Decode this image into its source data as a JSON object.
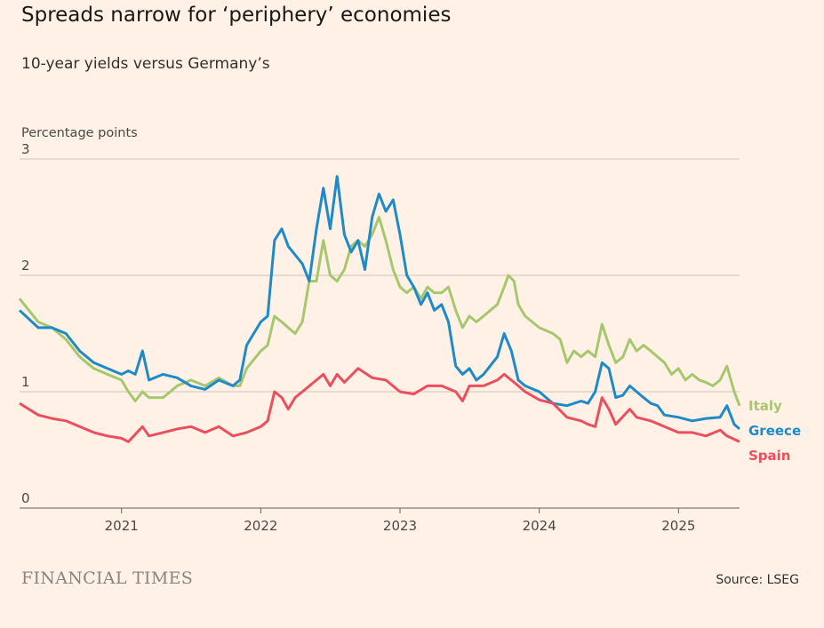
{
  "title": "Spreads narrow for ‘periphery’ economies",
  "subtitle": "10-year yields versus Germany’s",
  "source": "Source: LSEG",
  "logo_text": "FINANCIAL TIMES",
  "chart_data": {
    "type": "line",
    "title": "Spreads narrow for ‘periphery’ economies",
    "subtitle": "10-year yields versus Germany’s",
    "ylabel": "Percentage points",
    "ylim": [
      0,
      3
    ],
    "yticks": [
      "0",
      "1",
      "2",
      "3"
    ],
    "xlim": [
      "2020-04-08",
      "2025-06-10"
    ],
    "xticks": [
      "2021",
      "2022",
      "2023",
      "2024",
      "2025"
    ],
    "grid": "horizontal",
    "legend": "direct labels at line ends (right)",
    "series": [
      {
        "name": "Italy",
        "color": "#a6c76c",
        "points": [
          [
            "2020-04-08",
            1.8
          ],
          [
            "2020-05-27",
            1.6
          ],
          [
            "2020-07-02",
            1.55
          ],
          [
            "2020-08-08",
            1.45
          ],
          [
            "2020-09-13",
            1.3
          ],
          [
            "2020-10-20",
            1.2
          ],
          [
            "2020-11-25",
            1.15
          ],
          [
            "2021-01-01",
            1.1
          ],
          [
            "2021-01-19",
            1.0
          ],
          [
            "2021-02-06",
            0.92
          ],
          [
            "2021-02-25",
            1.0
          ],
          [
            "2021-03-14",
            0.95
          ],
          [
            "2021-04-20",
            0.95
          ],
          [
            "2021-05-27",
            1.05
          ],
          [
            "2021-07-02",
            1.1
          ],
          [
            "2021-08-08",
            1.05
          ],
          [
            "2021-09-13",
            1.12
          ],
          [
            "2021-10-20",
            1.05
          ],
          [
            "2021-11-07",
            1.05
          ],
          [
            "2021-11-25",
            1.2
          ],
          [
            "2022-01-01",
            1.35
          ],
          [
            "2022-01-19",
            1.4
          ],
          [
            "2022-02-06",
            1.65
          ],
          [
            "2022-02-25",
            1.6
          ],
          [
            "2022-03-14",
            1.55
          ],
          [
            "2022-04-01",
            1.5
          ],
          [
            "2022-04-20",
            1.6
          ],
          [
            "2022-05-08",
            1.95
          ],
          [
            "2022-05-27",
            1.95
          ],
          [
            "2022-06-14",
            2.3
          ],
          [
            "2022-07-02",
            2.0
          ],
          [
            "2022-07-20",
            1.95
          ],
          [
            "2022-08-08",
            2.05
          ],
          [
            "2022-08-26",
            2.25
          ],
          [
            "2022-09-13",
            2.3
          ],
          [
            "2022-10-01",
            2.25
          ],
          [
            "2022-10-20",
            2.35
          ],
          [
            "2022-11-07",
            2.5
          ],
          [
            "2022-11-25",
            2.3
          ],
          [
            "2022-12-14",
            2.05
          ],
          [
            "2023-01-01",
            1.9
          ],
          [
            "2023-01-19",
            1.85
          ],
          [
            "2023-02-06",
            1.9
          ],
          [
            "2023-02-25",
            1.8
          ],
          [
            "2023-03-14",
            1.9
          ],
          [
            "2023-04-01",
            1.85
          ],
          [
            "2023-04-20",
            1.85
          ],
          [
            "2023-05-08",
            1.9
          ],
          [
            "2023-05-27",
            1.7
          ],
          [
            "2023-06-14",
            1.55
          ],
          [
            "2023-07-02",
            1.65
          ],
          [
            "2023-07-20",
            1.6
          ],
          [
            "2023-08-08",
            1.65
          ],
          [
            "2023-08-26",
            1.7
          ],
          [
            "2023-09-13",
            1.75
          ],
          [
            "2023-10-01",
            1.9
          ],
          [
            "2023-10-12",
            2.0
          ],
          [
            "2023-10-27",
            1.95
          ],
          [
            "2023-11-07",
            1.75
          ],
          [
            "2023-11-25",
            1.65
          ],
          [
            "2024-01-01",
            1.55
          ],
          [
            "2024-02-06",
            1.5
          ],
          [
            "2024-02-25",
            1.45
          ],
          [
            "2024-03-14",
            1.25
          ],
          [
            "2024-04-01",
            1.35
          ],
          [
            "2024-04-20",
            1.3
          ],
          [
            "2024-05-08",
            1.35
          ],
          [
            "2024-05-27",
            1.3
          ],
          [
            "2024-06-14",
            1.58
          ],
          [
            "2024-07-02",
            1.4
          ],
          [
            "2024-07-20",
            1.25
          ],
          [
            "2024-08-08",
            1.3
          ],
          [
            "2024-08-26",
            1.45
          ],
          [
            "2024-09-13",
            1.35
          ],
          [
            "2024-10-01",
            1.4
          ],
          [
            "2024-10-20",
            1.35
          ],
          [
            "2024-11-25",
            1.25
          ],
          [
            "2024-12-14",
            1.15
          ],
          [
            "2025-01-01",
            1.2
          ],
          [
            "2025-01-19",
            1.1
          ],
          [
            "2025-02-06",
            1.15
          ],
          [
            "2025-02-25",
            1.1
          ],
          [
            "2025-03-14",
            1.08
          ],
          [
            "2025-04-01",
            1.05
          ],
          [
            "2025-04-20",
            1.1
          ],
          [
            "2025-05-08",
            1.22
          ],
          [
            "2025-05-27",
            1.0
          ],
          [
            "2025-06-10",
            0.88
          ]
        ]
      },
      {
        "name": "Greece",
        "color": "#1f8ac8",
        "points": [
          [
            "2020-04-08",
            1.7
          ],
          [
            "2020-05-27",
            1.55
          ],
          [
            "2020-07-02",
            1.55
          ],
          [
            "2020-08-08",
            1.5
          ],
          [
            "2020-09-13",
            1.35
          ],
          [
            "2020-10-20",
            1.25
          ],
          [
            "2020-11-25",
            1.2
          ],
          [
            "2021-01-01",
            1.15
          ],
          [
            "2021-01-19",
            1.18
          ],
          [
            "2021-02-06",
            1.15
          ],
          [
            "2021-02-25",
            1.35
          ],
          [
            "2021-03-14",
            1.1
          ],
          [
            "2021-04-20",
            1.15
          ],
          [
            "2021-05-27",
            1.12
          ],
          [
            "2021-07-02",
            1.05
          ],
          [
            "2021-08-08",
            1.02
          ],
          [
            "2021-09-13",
            1.1
          ],
          [
            "2021-10-20",
            1.05
          ],
          [
            "2021-11-07",
            1.1
          ],
          [
            "2021-11-25",
            1.4
          ],
          [
            "2022-01-01",
            1.6
          ],
          [
            "2022-01-19",
            1.65
          ],
          [
            "2022-02-06",
            2.3
          ],
          [
            "2022-02-25",
            2.4
          ],
          [
            "2022-03-14",
            2.25
          ],
          [
            "2022-04-20",
            2.1
          ],
          [
            "2022-05-08",
            1.95
          ],
          [
            "2022-05-27",
            2.4
          ],
          [
            "2022-06-14",
            2.75
          ],
          [
            "2022-07-02",
            2.4
          ],
          [
            "2022-07-20",
            2.85
          ],
          [
            "2022-08-08",
            2.35
          ],
          [
            "2022-08-26",
            2.2
          ],
          [
            "2022-09-13",
            2.3
          ],
          [
            "2022-10-01",
            2.05
          ],
          [
            "2022-10-20",
            2.5
          ],
          [
            "2022-11-07",
            2.7
          ],
          [
            "2022-11-25",
            2.55
          ],
          [
            "2022-12-14",
            2.65
          ],
          [
            "2023-01-01",
            2.35
          ],
          [
            "2023-01-19",
            2.0
          ],
          [
            "2023-02-06",
            1.9
          ],
          [
            "2023-02-25",
            1.75
          ],
          [
            "2023-03-14",
            1.85
          ],
          [
            "2023-04-01",
            1.7
          ],
          [
            "2023-04-20",
            1.75
          ],
          [
            "2023-05-08",
            1.6
          ],
          [
            "2023-05-27",
            1.22
          ],
          [
            "2023-06-14",
            1.15
          ],
          [
            "2023-07-02",
            1.2
          ],
          [
            "2023-07-20",
            1.1
          ],
          [
            "2023-08-08",
            1.15
          ],
          [
            "2023-09-13",
            1.3
          ],
          [
            "2023-10-01",
            1.5
          ],
          [
            "2023-10-20",
            1.35
          ],
          [
            "2023-11-07",
            1.1
          ],
          [
            "2023-11-25",
            1.05
          ],
          [
            "2024-01-01",
            1.0
          ],
          [
            "2024-01-19",
            0.95
          ],
          [
            "2024-02-06",
            0.9
          ],
          [
            "2024-03-14",
            0.88
          ],
          [
            "2024-04-20",
            0.92
          ],
          [
            "2024-05-08",
            0.9
          ],
          [
            "2024-05-27",
            1.0
          ],
          [
            "2024-06-14",
            1.25
          ],
          [
            "2024-07-02",
            1.2
          ],
          [
            "2024-07-20",
            0.95
          ],
          [
            "2024-08-08",
            0.97
          ],
          [
            "2024-08-26",
            1.05
          ],
          [
            "2024-09-13",
            1.0
          ],
          [
            "2024-10-01",
            0.95
          ],
          [
            "2024-10-20",
            0.9
          ],
          [
            "2024-11-07",
            0.88
          ],
          [
            "2024-11-25",
            0.8
          ],
          [
            "2025-01-01",
            0.78
          ],
          [
            "2025-02-06",
            0.75
          ],
          [
            "2025-03-14",
            0.77
          ],
          [
            "2025-04-20",
            0.78
          ],
          [
            "2025-05-08",
            0.88
          ],
          [
            "2025-05-27",
            0.72
          ],
          [
            "2025-06-10",
            0.68
          ]
        ]
      },
      {
        "name": "Spain",
        "color": "#eb4f5e",
        "points": [
          [
            "2020-04-08",
            0.9
          ],
          [
            "2020-05-27",
            0.8
          ],
          [
            "2020-07-02",
            0.77
          ],
          [
            "2020-08-08",
            0.75
          ],
          [
            "2020-09-13",
            0.7
          ],
          [
            "2020-10-20",
            0.65
          ],
          [
            "2020-11-25",
            0.62
          ],
          [
            "2021-01-01",
            0.6
          ],
          [
            "2021-01-19",
            0.57
          ],
          [
            "2021-02-25",
            0.7
          ],
          [
            "2021-03-14",
            0.62
          ],
          [
            "2021-04-20",
            0.65
          ],
          [
            "2021-05-27",
            0.68
          ],
          [
            "2021-07-02",
            0.7
          ],
          [
            "2021-08-08",
            0.65
          ],
          [
            "2021-09-13",
            0.7
          ],
          [
            "2021-10-20",
            0.62
          ],
          [
            "2021-11-25",
            0.65
          ],
          [
            "2022-01-01",
            0.7
          ],
          [
            "2022-01-19",
            0.75
          ],
          [
            "2022-02-06",
            1.0
          ],
          [
            "2022-02-25",
            0.95
          ],
          [
            "2022-03-14",
            0.85
          ],
          [
            "2022-04-01",
            0.95
          ],
          [
            "2022-04-20",
            1.0
          ],
          [
            "2022-05-27",
            1.1
          ],
          [
            "2022-06-14",
            1.15
          ],
          [
            "2022-07-02",
            1.05
          ],
          [
            "2022-07-20",
            1.15
          ],
          [
            "2022-08-08",
            1.08
          ],
          [
            "2022-09-13",
            1.2
          ],
          [
            "2022-10-20",
            1.12
          ],
          [
            "2022-11-25",
            1.1
          ],
          [
            "2023-01-01",
            1.0
          ],
          [
            "2023-02-06",
            0.98
          ],
          [
            "2023-03-14",
            1.05
          ],
          [
            "2023-04-20",
            1.05
          ],
          [
            "2023-05-27",
            1.0
          ],
          [
            "2023-06-14",
            0.92
          ],
          [
            "2023-07-02",
            1.05
          ],
          [
            "2023-08-08",
            1.05
          ],
          [
            "2023-09-13",
            1.1
          ],
          [
            "2023-10-01",
            1.15
          ],
          [
            "2023-11-07",
            1.05
          ],
          [
            "2023-11-25",
            1.0
          ],
          [
            "2024-01-01",
            0.93
          ],
          [
            "2024-02-06",
            0.9
          ],
          [
            "2024-03-14",
            0.78
          ],
          [
            "2024-04-20",
            0.75
          ],
          [
            "2024-05-08",
            0.72
          ],
          [
            "2024-05-27",
            0.7
          ],
          [
            "2024-06-14",
            0.95
          ],
          [
            "2024-07-02",
            0.85
          ],
          [
            "2024-07-20",
            0.72
          ],
          [
            "2024-08-26",
            0.85
          ],
          [
            "2024-09-13",
            0.78
          ],
          [
            "2024-10-20",
            0.75
          ],
          [
            "2024-11-25",
            0.7
          ],
          [
            "2025-01-01",
            0.65
          ],
          [
            "2025-02-06",
            0.65
          ],
          [
            "2025-03-14",
            0.62
          ],
          [
            "2025-04-20",
            0.67
          ],
          [
            "2025-05-08",
            0.62
          ],
          [
            "2025-06-10",
            0.57
          ]
        ]
      }
    ]
  }
}
